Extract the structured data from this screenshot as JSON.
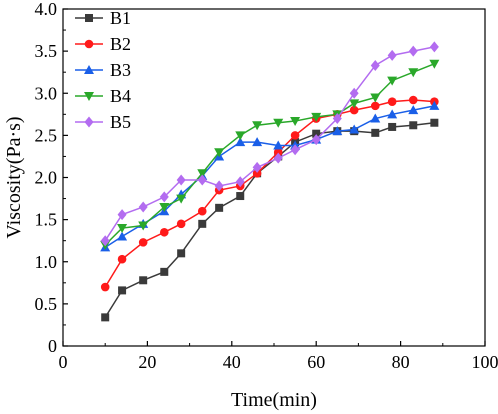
{
  "chart_data": {
    "type": "line",
    "xlabel": "Time(min)",
    "ylabel": "Viscosity(Pa·s)",
    "xlim": [
      0,
      100
    ],
    "ylim": [
      0,
      4.0
    ],
    "x_ticks": [
      "0",
      "20",
      "40",
      "60",
      "80",
      "100"
    ],
    "y_ticks": [
      "0",
      "0.5",
      "1.0",
      "1.5",
      "2.0",
      "2.5",
      "3.0",
      "3.5",
      "4.0"
    ],
    "grid": false,
    "legend_position": "top-left",
    "series": [
      {
        "name": "B1",
        "color": "#3a3a3a",
        "marker": "square",
        "x": [
          10,
          14,
          19,
          24,
          28,
          33,
          37,
          42,
          46,
          51,
          55,
          60,
          65,
          69,
          74,
          78,
          83,
          88
        ],
        "y": [
          0.34,
          0.66,
          0.78,
          0.88,
          1.1,
          1.45,
          1.64,
          1.78,
          2.05,
          2.25,
          2.42,
          2.52,
          2.55,
          2.55,
          2.53,
          2.6,
          2.62,
          2.65
        ]
      },
      {
        "name": "B2",
        "color": "#ff1a1a",
        "marker": "circle",
        "x": [
          10,
          14,
          19,
          24,
          28,
          33,
          37,
          42,
          46,
          51,
          55,
          60,
          65,
          69,
          74,
          78,
          83,
          88
        ],
        "y": [
          0.7,
          1.03,
          1.23,
          1.35,
          1.45,
          1.6,
          1.85,
          1.9,
          2.05,
          2.3,
          2.5,
          2.7,
          2.75,
          2.8,
          2.85,
          2.9,
          2.92,
          2.9
        ]
      },
      {
        "name": "B3",
        "color": "#1a5fe8",
        "marker": "triangle-up",
        "x": [
          10,
          14,
          19,
          24,
          28,
          33,
          37,
          42,
          46,
          51,
          55,
          60,
          65,
          69,
          74,
          78,
          83,
          88
        ],
        "y": [
          1.17,
          1.3,
          1.45,
          1.6,
          1.8,
          2.02,
          2.25,
          2.42,
          2.42,
          2.38,
          2.38,
          2.45,
          2.55,
          2.57,
          2.7,
          2.75,
          2.8,
          2.85
        ]
      },
      {
        "name": "B4",
        "color": "#2aa82a",
        "marker": "triangle-down",
        "x": [
          10,
          14,
          19,
          24,
          28,
          33,
          37,
          42,
          46,
          51,
          55,
          60,
          65,
          69,
          74,
          78,
          83,
          88
        ],
        "y": [
          1.2,
          1.4,
          1.43,
          1.65,
          1.75,
          2.05,
          2.3,
          2.5,
          2.62,
          2.65,
          2.67,
          2.72,
          2.75,
          2.88,
          2.95,
          3.15,
          3.25,
          3.35
        ]
      },
      {
        "name": "B5",
        "color": "#b36cf0",
        "marker": "diamond",
        "x": [
          10,
          14,
          19,
          24,
          28,
          33,
          37,
          42,
          46,
          51,
          55,
          60,
          65,
          69,
          74,
          78,
          83,
          88
        ],
        "y": [
          1.25,
          1.56,
          1.65,
          1.77,
          1.97,
          1.97,
          1.9,
          1.95,
          2.12,
          2.23,
          2.33,
          2.45,
          2.7,
          3.0,
          3.33,
          3.45,
          3.5,
          3.55
        ]
      }
    ]
  }
}
